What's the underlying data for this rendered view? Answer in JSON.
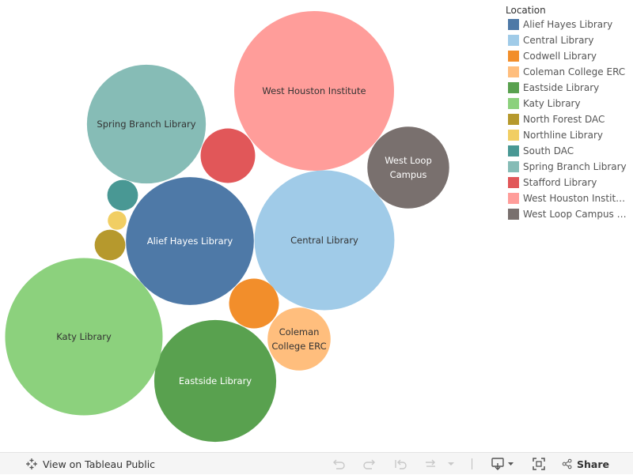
{
  "legend": {
    "title": "Location"
  },
  "chart_data": {
    "type": "bubble",
    "legend_placement": "right",
    "bubbles": [
      {
        "name": "Alief Hayes Library",
        "label": "Alief Hayes Library",
        "size": 6.6,
        "color": "#4e79a7",
        "label_color": "#ffffff"
      },
      {
        "name": "Central Library",
        "label": "Central Library",
        "size": 7.9,
        "color": "#a0cbe8",
        "label_color": "#333333"
      },
      {
        "name": "Codwell Library",
        "label": "",
        "size": 1.0,
        "color": "#f28e2b",
        "label_color": "#333333"
      },
      {
        "name": "Coleman College ERC",
        "label": "Coleman\nCollege ERC",
        "size": 1.6,
        "color": "#ffbe7d",
        "label_color": "#333333"
      },
      {
        "name": "Eastside Library",
        "label": "Eastside Library",
        "size": 6.0,
        "color": "#59a14f",
        "label_color": "#ffffff"
      },
      {
        "name": "Katy Library",
        "label": "Katy Library",
        "size": 10.0,
        "color": "#8cd17d",
        "label_color": "#333333"
      },
      {
        "name": "North Forest DAC",
        "label": "",
        "size": 0.38,
        "color": "#b6992d",
        "label_color": "#333333"
      },
      {
        "name": "Northline Library",
        "label": "",
        "size": 0.14,
        "color": "#f1ce63",
        "label_color": "#333333"
      },
      {
        "name": "South DAC",
        "label": "",
        "size": 0.38,
        "color": "#499894",
        "label_color": "#333333"
      },
      {
        "name": "Spring Branch Library",
        "label": "Spring Branch Library",
        "size": 5.7,
        "color": "#86bcb6",
        "label_color": "#333333"
      },
      {
        "name": "Stafford Library",
        "label": "",
        "size": 1.2,
        "color": "#e15759",
        "label_color": "#333333"
      },
      {
        "name": "West Houston Institute",
        "label": "West Houston Institute",
        "size": 10.3,
        "color": "#ff9d9a",
        "label_color": "#333333"
      },
      {
        "name": "West Loop Campus Library",
        "legend_label": "West Loop Campus Li...",
        "label": "West Loop\nCampus",
        "size": 2.7,
        "color": "#79706e",
        "label_color": "#ffffff"
      }
    ]
  },
  "toolbar": {
    "view_label": "View on Tableau Public",
    "share_label": "Share"
  },
  "icons": [
    "tableau-logo-icon",
    "undo-icon",
    "redo-icon",
    "revert-icon",
    "refresh-icon",
    "dropdown-icon",
    "download-icon",
    "fullscreen-icon",
    "share-icon"
  ]
}
